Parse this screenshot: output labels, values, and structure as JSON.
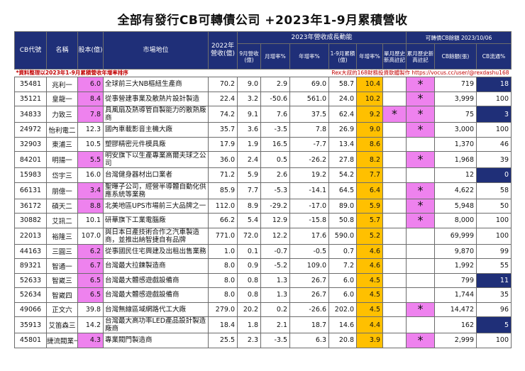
{
  "title": "全部有發行CB可轉債公司 +2023年1-9月累積營收",
  "header": {
    "code": "CB代號",
    "name": "名稱",
    "capital": "股本(億)",
    "market": "市場地位",
    "rev2022": "2022年營收(億)",
    "growth_group": "2023年營收成長動能",
    "sep_rev": "9月營收(億)",
    "mom": "月增率%",
    "yoy": "年增率%",
    "cum_rev": "1-9月累積(億)",
    "cum_yoy": "年增率%",
    "month_high": "單月歷史新高註記",
    "cum_high": "累月歷史新高註記",
    "cb_group": "可轉債CB餘額 2023/10/06",
    "cb_bal": "CB餘額(張)",
    "cb_float": "CB流通%"
  },
  "note_left": "*資料整理以2023年1-9月累積營收年增率排序",
  "note_right": "Rex大叔的168財務投資軟體製作 https://vocus.cc/user/@rexdashu168",
  "rows": [
    {
      "code": "35481",
      "name": "兆利一",
      "capital": "6.0",
      "market": "全球前三大NB樞紐生產商",
      "rev2022": "70.2",
      "sep": "9.0",
      "mom": "2.9",
      "yoy": "69.0",
      "cum": "58.7",
      "cyoy": "10.4",
      "mh": "",
      "ch": "*",
      "bal": "719",
      "flt": "18"
    },
    {
      "code": "35121",
      "name": "皇龍一",
      "capital": "8.4",
      "market": "從事營建事業及散熱片設計製造",
      "rev2022": "22.4",
      "sep": "3.2",
      "mom": "-50.6",
      "yoy": "561.0",
      "cum": "24.0",
      "cyoy": "10.2",
      "mh": "",
      "ch": "*",
      "bal": "3,999",
      "flt": "100"
    },
    {
      "code": "34833",
      "name": "力致三",
      "capital": "7.8",
      "market": "具風扇及熱導管自製能力的散熱廠商",
      "rev2022": "74.2",
      "sep": "9.1",
      "mom": "7.6",
      "yoy": "37.5",
      "cum": "62.4",
      "cyoy": "9.2",
      "mh": "*",
      "ch": "*",
      "bal": "75",
      "flt": "3"
    },
    {
      "code": "24972",
      "name": "怡利電二",
      "capital": "12.3",
      "market": "國內車載影音主機大廠",
      "rev2022": "35.7",
      "sep": "3.6",
      "mom": "-3.5",
      "yoy": "7.8",
      "cum": "26.9",
      "cyoy": "9.0",
      "mh": "",
      "ch": "*",
      "bal": "3,000",
      "flt": "100"
    },
    {
      "code": "32903",
      "name": "東浦三",
      "capital": "10.5",
      "market": "塑膠精密元件模具廠",
      "rev2022": "17.9",
      "sep": "1.9",
      "mom": "16.5",
      "yoy": "-7.7",
      "cum": "13.4",
      "cyoy": "8.6",
      "mh": "",
      "ch": "",
      "bal": "1,370",
      "flt": "46"
    },
    {
      "code": "84201",
      "name": "明揚一",
      "capital": "5.5",
      "market": "明安旗下以生產專業高爾夫球之公司",
      "rev2022": "36.0",
      "sep": "2.4",
      "mom": "0.5",
      "yoy": "-26.2",
      "cum": "27.8",
      "cyoy": "8.2",
      "mh": "",
      "ch": "*",
      "bal": "1,968",
      "flt": "39"
    },
    {
      "code": "15983",
      "name": "岱宇三",
      "capital": "16.0",
      "market": "台灣健身器材出口業者",
      "rev2022": "71.2",
      "sep": "5.9",
      "mom": "2.6",
      "yoy": "19.2",
      "cum": "54.2",
      "cyoy": "7.7",
      "mh": "",
      "ch": "",
      "bal": "12",
      "flt": "0"
    },
    {
      "code": "66131",
      "name": "朋億一",
      "capital": "3.4",
      "market": "聖暉子公司，經營半導體自動化供應系統等業務",
      "rev2022": "85.9",
      "sep": "7.7",
      "mom": "-5.3",
      "yoy": "-14.1",
      "cum": "64.5",
      "cyoy": "6.4",
      "mh": "",
      "ch": "*",
      "bal": "4,622",
      "flt": "58"
    },
    {
      "code": "36172",
      "name": "碩天二",
      "capital": "8.8",
      "market": "北美地區UPS市場前三大品牌之一",
      "rev2022": "112.0",
      "sep": "8.9",
      "mom": "-29.2",
      "yoy": "-17.0",
      "cum": "89.0",
      "cyoy": "5.9",
      "mh": "",
      "ch": "*",
      "bal": "5,948",
      "flt": "50"
    },
    {
      "code": "30882",
      "name": "艾訊二",
      "capital": "10.1",
      "market": "研華旗下工業電腦廠",
      "rev2022": "66.2",
      "sep": "5.4",
      "mom": "12.9",
      "yoy": "-15.8",
      "cum": "50.8",
      "cyoy": "5.7",
      "mh": "",
      "ch": "*",
      "bal": "8,000",
      "flt": "100"
    },
    {
      "code": "22013",
      "name": "裕隆三",
      "capital": "107.0",
      "market": "與日本日產技術合作之汽車製造商，並推出納智捷自有品牌",
      "rev2022": "771.0",
      "sep": "72.0",
      "mom": "12.2",
      "yoy": "17.6",
      "cum": "590.0",
      "cyoy": "5.2",
      "mh": "",
      "ch": "",
      "bal": "69,999",
      "flt": "100"
    },
    {
      "code": "44163",
      "name": "三圓三",
      "capital": "6.2",
      "market": "從事國民住宅興建及出租出售業務",
      "rev2022": "1.0",
      "sep": "0.1",
      "mom": "-0.7",
      "yoy": "-0.5",
      "cum": "0.7",
      "cyoy": "4.6",
      "mh": "",
      "ch": "",
      "bal": "9,870",
      "flt": "99"
    },
    {
      "code": "89321",
      "name": "智通一",
      "capital": "6.7",
      "market": "台灣最大拉鍊製造商",
      "rev2022": "8.0",
      "sep": "0.9",
      "mom": "-5.2",
      "yoy": "109.0",
      "cum": "7.2",
      "cyoy": "4.6",
      "mh": "",
      "ch": "",
      "bal": "1,992",
      "flt": "55"
    },
    {
      "code": "52633",
      "name": "智崴三",
      "capital": "6.5",
      "market": "台灣最大體感遊戲設備商",
      "rev2022": "8.0",
      "sep": "0.8",
      "mom": "1.3",
      "yoy": "26.7",
      "cum": "6.0",
      "cyoy": "4.5",
      "mh": "",
      "ch": "",
      "bal": "799",
      "flt": "11"
    },
    {
      "code": "52634",
      "name": "智崴四",
      "capital": "6.5",
      "market": "台灣最大體感遊戲設備商",
      "rev2022": "8.0",
      "sep": "0.8",
      "mom": "1.3",
      "yoy": "26.7",
      "cum": "6.0",
      "cyoy": "4.5",
      "mh": "",
      "ch": "",
      "bal": "1,744",
      "flt": "35"
    },
    {
      "code": "49066",
      "name": "正文六",
      "capital": "39.8",
      "market": "台灣無線區域網路代工大廠",
      "rev2022": "279.0",
      "sep": "20.2",
      "mom": "0.2",
      "yoy": "-26.6",
      "cum": "202.0",
      "cyoy": "4.5",
      "mh": "",
      "ch": "*",
      "bal": "14,472",
      "flt": "96"
    },
    {
      "code": "35913",
      "name": "艾笛森三",
      "capital": "14.2",
      "market": "台灣最大高功率LED產品設計製造廠商",
      "rev2022": "18.4",
      "sep": "1.8",
      "mom": "2.1",
      "yoy": "18.7",
      "cum": "14.6",
      "cyoy": "4.4",
      "mh": "",
      "ch": "",
      "bal": "162",
      "flt": "5"
    },
    {
      "code": "45801",
      "name": "捷流閥業一",
      "capital": "4.3",
      "market": "專業閥門製造商",
      "rev2022": "25.5",
      "sep": "2.3",
      "mom": "-3.5",
      "yoy": "6.3",
      "cum": "20.8",
      "cyoy": "3.9",
      "mh": "",
      "ch": "*",
      "bal": "2,999",
      "flt": "100"
    }
  ],
  "colors": {
    "header_bg": "#1f2f78",
    "magenta": "#ee82ee",
    "yellow": "#ffc000",
    "note_red": "#c00000"
  }
}
